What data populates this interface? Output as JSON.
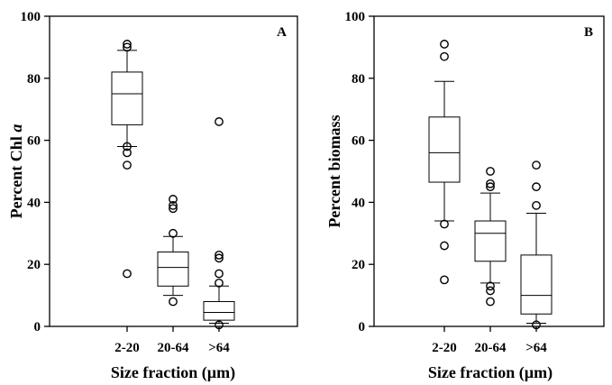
{
  "chart_data": [
    {
      "type": "box",
      "panel_label": "A",
      "ylabel_prefix": "Percent Chl ",
      "ylabel_italic": "a",
      "xlabel": "Size fraction (µm)",
      "ylim": [
        0,
        100
      ],
      "yticks": [
        "0",
        "20",
        "40",
        "60",
        "80",
        "100"
      ],
      "categories": [
        "2-20",
        "20-64",
        ">64"
      ],
      "boxes": [
        {
          "whisker_low": 58,
          "q1": 65,
          "median": 75,
          "q3": 82,
          "whisker_high": 89,
          "outliers": [
            91,
            90,
            58,
            56,
            52,
            17
          ]
        },
        {
          "whisker_low": 10,
          "q1": 13,
          "median": 19,
          "q3": 24,
          "whisker_high": 29,
          "outliers": [
            41,
            39,
            38,
            30,
            8
          ]
        },
        {
          "whisker_low": 1,
          "q1": 2,
          "median": 4.5,
          "q3": 8,
          "whisker_high": 13,
          "outliers": [
            66,
            23,
            22,
            17,
            14,
            0.5
          ]
        }
      ]
    },
    {
      "type": "box",
      "panel_label": "B",
      "ylabel_prefix": "Percent biomass",
      "ylabel_italic": "",
      "xlabel": "Size fraction (µm)",
      "ylim": [
        0,
        100
      ],
      "yticks": [
        "0",
        "20",
        "40",
        "60",
        "80",
        "100"
      ],
      "categories": [
        "2-20",
        "20-64",
        ">64"
      ],
      "boxes": [
        {
          "whisker_low": 34,
          "q1": 46.5,
          "median": 56,
          "q3": 67.5,
          "whisker_high": 79,
          "outliers": [
            91,
            87,
            33,
            26,
            15
          ]
        },
        {
          "whisker_low": 14,
          "q1": 21,
          "median": 30,
          "q3": 34,
          "whisker_high": 43,
          "outliers": [
            50,
            46,
            45,
            13,
            11.5,
            8
          ]
        },
        {
          "whisker_low": 1,
          "q1": 4,
          "median": 10,
          "q3": 23,
          "whisker_high": 36.5,
          "outliers": [
            52,
            45,
            39,
            0.5
          ]
        }
      ]
    }
  ]
}
